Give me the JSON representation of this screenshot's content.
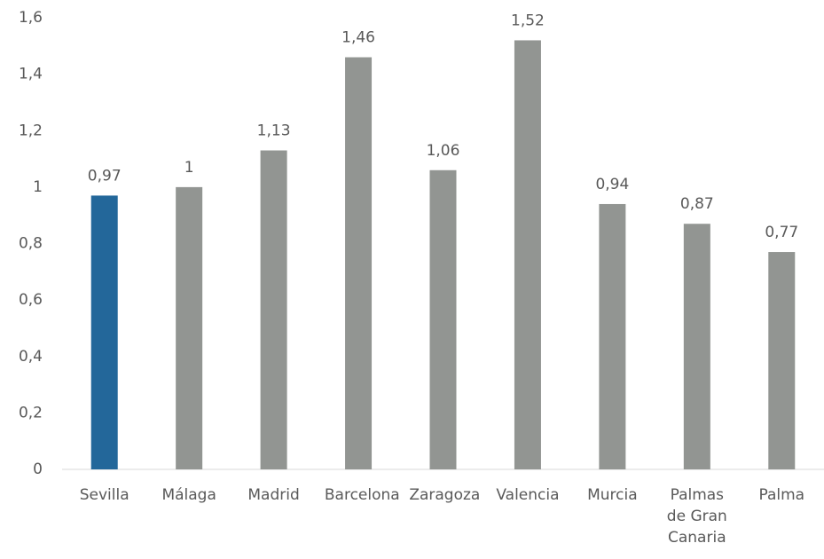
{
  "chart_data": {
    "type": "bar",
    "categories": [
      "Sevilla",
      "Málaga",
      "Madrid",
      "Barcelona",
      "Zaragoza",
      "Valencia",
      "Murcia",
      "Palmas de Gran Canaria",
      "Palma"
    ],
    "values": [
      0.97,
      1,
      1.13,
      1.46,
      1.06,
      1.52,
      0.94,
      0.87,
      0.77
    ],
    "value_labels": [
      "0,97",
      "1",
      "1,13",
      "1,46",
      "1,06",
      "1,52",
      "0,94",
      "0,87",
      "0,77"
    ],
    "colors": [
      "#23679a",
      "#929592",
      "#929592",
      "#929592",
      "#929592",
      "#929592",
      "#929592",
      "#929592",
      "#929592"
    ],
    "ylim": [
      0,
      1.6
    ],
    "yticks": [
      0,
      {
        "value": 0.2,
        "label": "0,2"
      },
      {
        "value": 0.4,
        "label": "0,4"
      },
      {
        "value": 0.6,
        "label": "0,6"
      },
      {
        "value": 0.8,
        "label": "0,8"
      },
      1,
      {
        "value": 1.2,
        "label": "1,2"
      },
      {
        "value": 1.4,
        "label": "1,4"
      },
      {
        "value": 1.6,
        "label": "1,6"
      }
    ],
    "grid": false
  }
}
